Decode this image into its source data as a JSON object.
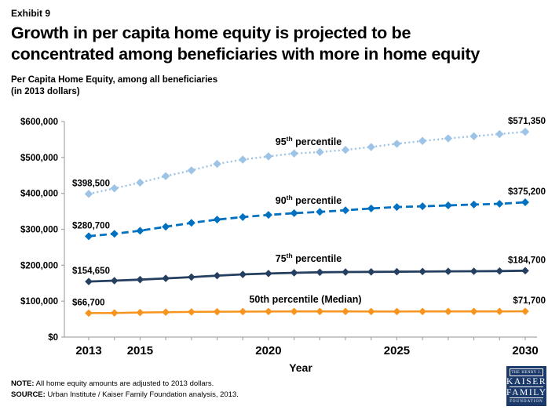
{
  "header": {
    "exhibit": "Exhibit 9",
    "title_line1": "Growth in per capita home equity is projected to be",
    "title_line2": "concentrated among beneficiaries with more in home equity",
    "subtitle_line1": "Per Capita Home Equity, among all beneficiaries",
    "subtitle_line2": "(in 2013 dollars)"
  },
  "chart_data": {
    "type": "line",
    "x": [
      2013,
      2014,
      2015,
      2016,
      2017,
      2018,
      2019,
      2020,
      2021,
      2022,
      2023,
      2024,
      2025,
      2026,
      2027,
      2028,
      2029,
      2030
    ],
    "xlabel": "Year",
    "ylim": [
      0,
      600000
    ],
    "ytick_step": 100000,
    "ytick_labels": [
      "$600,000",
      "$500,000",
      "$400,000",
      "$300,000",
      "$200,000",
      "$100,000",
      "$0"
    ],
    "xticks": [
      {
        "label": "2013",
        "year": 2013
      },
      {
        "label": "2015",
        "year": 2015
      },
      {
        "label": "2020",
        "year": 2020
      },
      {
        "label": "2025",
        "year": 2025
      },
      {
        "label": "2030",
        "year": 2030
      }
    ],
    "axis_color": "#A6A6A6",
    "grid": false,
    "legend_position": "inline-labels-above-lines",
    "series": [
      {
        "name": "95th percentile",
        "label": {
          "pre": "95",
          "sup": "th",
          "post": " percentile"
        },
        "color": "#9DC3E6",
        "style": "dotted",
        "start_label": "$398,500",
        "end_label": "$571,350",
        "values": [
          398500,
          414000,
          430000,
          448000,
          464000,
          482000,
          494000,
          503000,
          511000,
          515000,
          521000,
          529000,
          538000,
          546000,
          553000,
          559000,
          565000,
          571350
        ]
      },
      {
        "name": "90th percentile",
        "label": {
          "pre": "90",
          "sup": "th",
          "post": " percentile"
        },
        "color": "#0070C0",
        "style": "dashed",
        "start_label": "$280,700",
        "end_label": "$375,200",
        "values": [
          280700,
          287500,
          296000,
          307000,
          318000,
          327000,
          334000,
          340000,
          345000,
          348500,
          353000,
          358000,
          362000,
          364000,
          366500,
          369000,
          371000,
          375200
        ]
      },
      {
        "name": "75th percentile",
        "label": {
          "pre": "75",
          "sup": "th",
          "post": " percentile"
        },
        "color": "#243F60",
        "style": "solid",
        "start_label": "$154,650",
        "end_label": "$184,700",
        "values": [
          154650,
          157000,
          160000,
          163500,
          167000,
          171000,
          174500,
          177000,
          179000,
          180500,
          181000,
          181500,
          182000,
          182500,
          183000,
          183300,
          183800,
          184700
        ]
      },
      {
        "name": "50th percentile (Median)",
        "label": {
          "pre": "50th percentile (Median)",
          "sup": "",
          "post": ""
        },
        "color": "#F7941E",
        "style": "solid",
        "start_label": "$66,700",
        "end_label": "$71,700",
        "values": [
          66700,
          67300,
          68400,
          69400,
          70100,
          70600,
          71000,
          71200,
          71300,
          71400,
          71300,
          71200,
          71200,
          71300,
          71300,
          71400,
          71500,
          71700
        ]
      }
    ]
  },
  "footer": {
    "note_label": "NOTE:",
    "note_text": "  All home equity amounts are adjusted to 2013 dollars.",
    "source_label": "SOURCE:",
    "source_text": " Urban Institute / Kaiser Family Foundation analysis, 2013.",
    "logo": {
      "color": "#1B3A6B",
      "line1": "THE HENRY J.",
      "line2": "KAISER",
      "line3": "FAMILY",
      "line4": "FOUNDATION"
    }
  }
}
